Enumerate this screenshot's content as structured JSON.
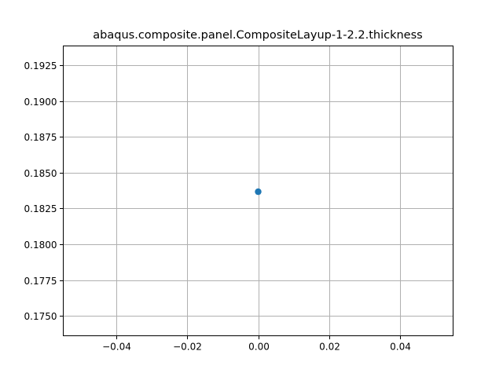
{
  "chart_data": {
    "type": "scatter",
    "title": "abaqus.composite.panel.CompositeLayup-1-2.2.thickness",
    "xlabel": "",
    "ylabel": "",
    "xlim": [
      -0.055,
      0.055
    ],
    "ylim": [
      0.17361,
      0.19385
    ],
    "x_ticks": [
      -0.04,
      -0.02,
      0.0,
      0.02,
      0.04
    ],
    "x_tick_labels": [
      "−0.04",
      "−0.02",
      "0.00",
      "0.02",
      "0.04"
    ],
    "y_ticks": [
      0.175,
      0.1775,
      0.18,
      0.1825,
      0.185,
      0.1875,
      0.19,
      0.1925
    ],
    "y_tick_labels": [
      "0.1750",
      "0.1775",
      "0.1800",
      "0.1825",
      "0.1850",
      "0.1875",
      "0.1900",
      "0.1925"
    ],
    "grid": true,
    "marker_color": "#1f77b4",
    "points": [
      {
        "x": 0.0,
        "y": 0.18367
      }
    ]
  }
}
